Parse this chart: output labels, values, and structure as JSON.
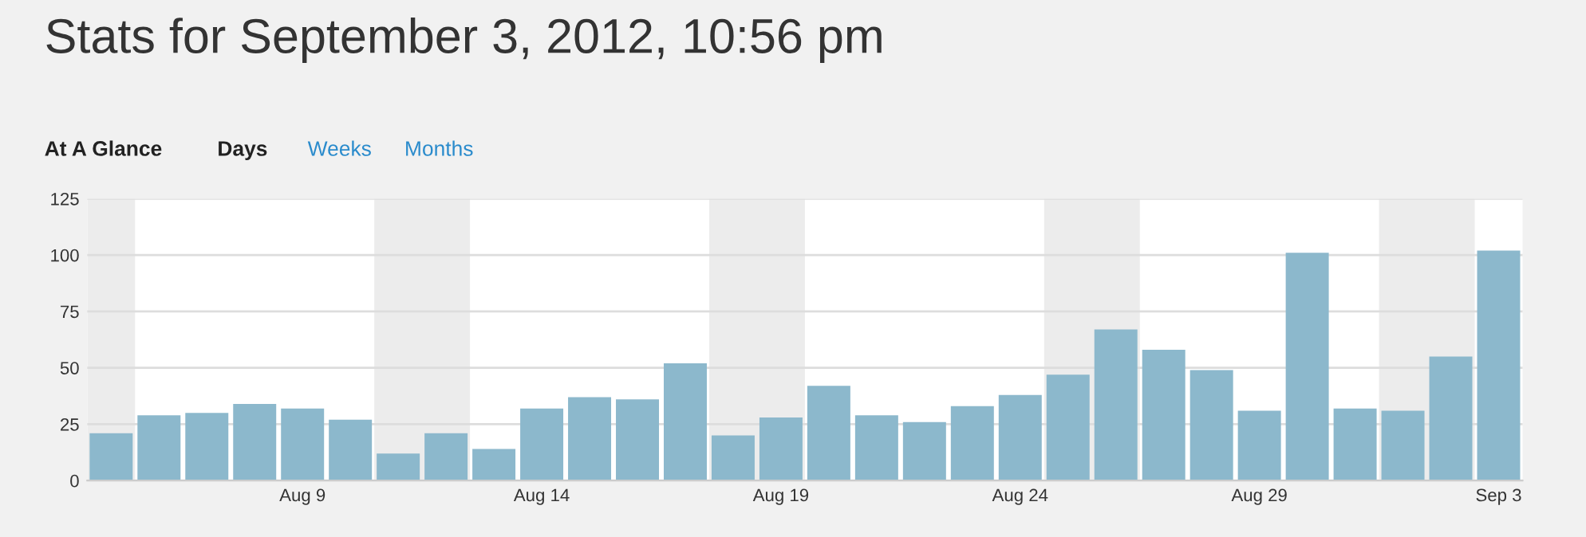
{
  "chart_data": {
    "type": "bar",
    "title": "Stats for September 3, 2012, 10:56 pm",
    "annotations": [
      "At A Glance",
      "Days",
      "Weeks",
      "Months"
    ],
    "x": [
      "2012-08-05",
      "2012-08-06",
      "2012-08-07",
      "2012-08-08",
      "2012-08-09",
      "2012-08-10",
      "2012-08-11",
      "2012-08-12",
      "2012-08-13",
      "2012-08-14",
      "2012-08-15",
      "2012-08-16",
      "2012-08-17",
      "2012-08-18",
      "2012-08-19",
      "2012-08-20",
      "2012-08-21",
      "2012-08-22",
      "2012-08-23",
      "2012-08-24",
      "2012-08-25",
      "2012-08-26",
      "2012-08-27",
      "2012-08-28",
      "2012-08-29",
      "2012-08-30",
      "2012-08-31",
      "2012-09-01",
      "2012-09-02",
      "2012-09-03"
    ],
    "values": [
      21,
      29,
      30,
      34,
      32,
      27,
      12,
      21,
      14,
      32,
      37,
      36,
      52,
      20,
      28,
      42,
      29,
      26,
      33,
      38,
      47,
      67,
      58,
      49,
      31,
      101,
      32,
      31,
      55,
      102
    ],
    "color": "#8cb8cc",
    "xlim": [
      "2012-08-04T12:00",
      "2012-09-03T12:00"
    ],
    "xticks": [
      {
        "value": "2012-08-09",
        "label": "Aug 9"
      },
      {
        "value": "2012-08-14",
        "label": "Aug 14"
      },
      {
        "value": "2012-08-19",
        "label": "Aug 19"
      },
      {
        "value": "2012-08-24",
        "label": "Aug 24"
      },
      {
        "value": "2012-08-29",
        "label": "Aug 29"
      },
      {
        "value": "2012-09-03",
        "label": "Sep 3"
      }
    ],
    "ylim": [
      0,
      125
    ],
    "yticks": [
      0,
      25,
      50,
      75,
      100,
      125
    ],
    "grid": "y",
    "bands": [
      {
        "axis": "x",
        "from": "2012-08-04T12:00",
        "to": "2012-08-05T12:00",
        "color": "#ececec"
      },
      {
        "axis": "x",
        "from": "2012-08-10T12:00",
        "to": "2012-08-12T12:00",
        "color": "#ececec"
      },
      {
        "axis": "x",
        "from": "2012-08-17T12:00",
        "to": "2012-08-19T12:00",
        "color": "#ececec"
      },
      {
        "axis": "x",
        "from": "2012-08-24T12:00",
        "to": "2012-08-26T12:00",
        "color": "#ececec"
      },
      {
        "axis": "x",
        "from": "2012-08-31T12:00",
        "to": "2012-09-02T12:00",
        "color": "#ececec"
      }
    ]
  }
}
